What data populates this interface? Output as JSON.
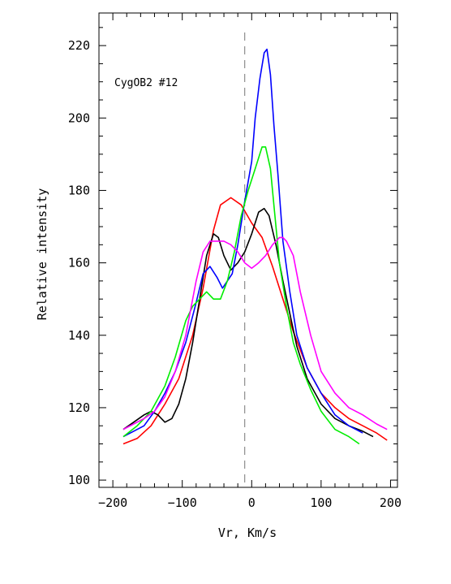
{
  "chart_data": {
    "type": "line",
    "title": "",
    "annotation": "CygOB2 #12",
    "xlabel": "Vr, Km/s",
    "ylabel": "Relative intensity",
    "xlim": [
      -220,
      210
    ],
    "ylim": [
      98,
      229
    ],
    "xticks": [
      -200,
      -100,
      0,
      100,
      200
    ],
    "yticks": [
      100,
      120,
      140,
      160,
      180,
      200,
      220
    ],
    "reference_line_x": -10,
    "grid": false,
    "series": [
      {
        "color": "#ff0000",
        "x": [
          -185,
          -165,
          -145,
          -125,
          -105,
          -85,
          -70,
          -55,
          -45,
          -30,
          -15,
          0,
          15,
          30,
          45,
          60,
          80,
          100,
          120,
          140,
          160,
          180,
          195
        ],
        "y": [
          110,
          111.5,
          115,
          121,
          128,
          140,
          153,
          169,
          176,
          178,
          176,
          171,
          167,
          159,
          150,
          141,
          131,
          124,
          120,
          117,
          115,
          113,
          111
        ]
      },
      {
        "color": "#000000",
        "x": [
          -185,
          -170,
          -155,
          -145,
          -135,
          -125,
          -115,
          -105,
          -95,
          -85,
          -75,
          -65,
          -55,
          -48,
          -40,
          -30,
          -20,
          -10,
          0,
          10,
          18,
          25,
          35,
          45,
          55,
          65,
          80,
          100,
          120,
          140,
          160,
          175
        ],
        "y": [
          114,
          116,
          118,
          119,
          118,
          116,
          117,
          121,
          128,
          138,
          150,
          162,
          168,
          167,
          162,
          158,
          160,
          163,
          168,
          174,
          175,
          173,
          165,
          155,
          146,
          137,
          128,
          121,
          117,
          115,
          113.5,
          112
        ]
      },
      {
        "color": "#0000ff",
        "x": [
          -185,
          -170,
          -155,
          -140,
          -125,
          -110,
          -95,
          -80,
          -70,
          -60,
          -50,
          -42,
          -35,
          -28,
          -20,
          -10,
          0,
          5,
          12,
          18,
          22,
          27,
          32,
          38,
          45,
          55,
          65,
          80,
          100,
          120,
          140,
          160
        ],
        "y": [
          112,
          113.5,
          115,
          119,
          124,
          130,
          138,
          149,
          157,
          159,
          156,
          153,
          155,
          157,
          165,
          177,
          188,
          200,
          211,
          218,
          219,
          212,
          198,
          184,
          166,
          152,
          140,
          131,
          124,
          118,
          115,
          113
        ]
      },
      {
        "color": "#00ee00",
        "x": [
          -185,
          -165,
          -145,
          -125,
          -110,
          -95,
          -85,
          -75,
          -65,
          -55,
          -45,
          -35,
          -25,
          -15,
          -5,
          5,
          15,
          20,
          27,
          33,
          40,
          50,
          60,
          70,
          85,
          100,
          120,
          140,
          155
        ],
        "y": [
          112,
          115,
          119,
          126,
          134,
          144,
          148,
          150,
          152,
          150,
          150,
          155,
          163,
          173,
          180,
          186,
          192,
          192,
          186,
          174,
          160,
          148,
          138,
          132,
          125,
          119,
          114,
          112,
          110
        ]
      },
      {
        "color": "#ff00ff",
        "x": [
          -185,
          -170,
          -155,
          -140,
          -125,
          -110,
          -95,
          -80,
          -70,
          -60,
          -50,
          -40,
          -30,
          -20,
          -10,
          0,
          10,
          20,
          30,
          40,
          45,
          50,
          60,
          70,
          85,
          100,
          120,
          140,
          160,
          180,
          195
        ],
        "y": [
          114,
          115.5,
          117,
          119,
          123,
          130,
          140,
          155,
          163,
          166,
          166,
          166,
          165,
          163,
          160,
          158.5,
          160,
          162,
          165,
          167,
          167,
          166,
          162,
          152,
          140,
          130,
          124,
          120,
          118,
          115.5,
          114
        ]
      }
    ]
  }
}
